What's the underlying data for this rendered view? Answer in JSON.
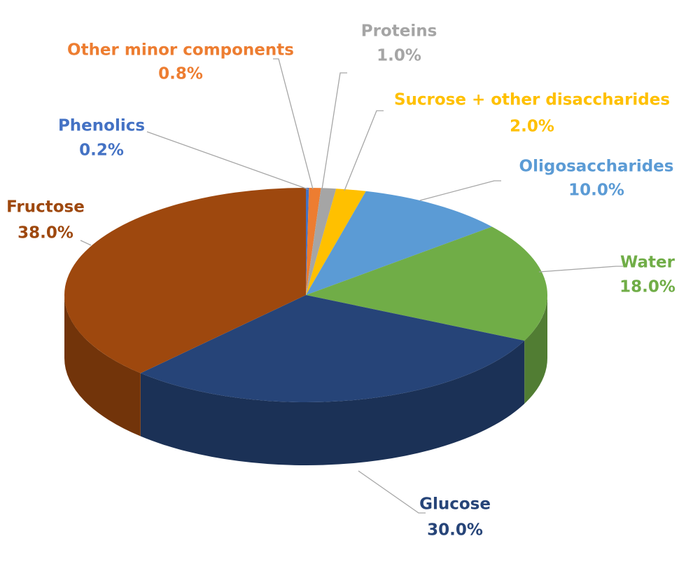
{
  "chart_data": {
    "type": "pie",
    "categories": [
      "Phenolics",
      "Other minor components",
      "Proteins",
      "Sucrose + other disaccharides",
      "Oligosaccharides",
      "Water",
      "Glucose",
      "Fructose"
    ],
    "values": [
      0.2,
      0.8,
      1.0,
      2.0,
      10.0,
      18.0,
      30.0,
      38.0
    ],
    "value_labels": [
      "0.2%",
      "0.8%",
      "1.0%",
      "2.0%",
      "10.0%",
      "18.0%",
      "30.0%",
      "38.0%"
    ],
    "colors": [
      "#4472c4",
      "#ed7d31",
      "#a5a5a5",
      "#ffc000",
      "#5b9bd5",
      "#70ad47",
      "#264478",
      "#9e480e"
    ]
  }
}
